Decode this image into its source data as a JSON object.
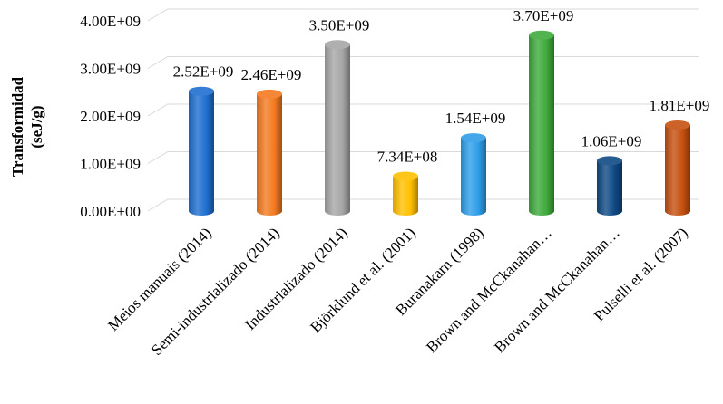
{
  "chart_data": {
    "type": "bar",
    "ylabel_line1": "Transformidad",
    "ylabel_line2": "(seJ/g)",
    "ylim": [
      0,
      4000000000
    ],
    "yticks": [
      {
        "value": 0,
        "label": "0.00E+00"
      },
      {
        "value": 1000000000,
        "label": "1.00E+09"
      },
      {
        "value": 2000000000,
        "label": "2.00E+09"
      },
      {
        "value": 3000000000,
        "label": "3.00E+09"
      },
      {
        "value": 4000000000,
        "label": "4.00E+09"
      }
    ],
    "categories": [
      "Meios manuais (2014)",
      "Semi-industrializado (2014)",
      "Industrializado (2014)",
      "Björklund et al. (2001)",
      "Buranakarn (1998)",
      "Brown and McCkanahan…",
      "Brown and McCkanahan…",
      "Pulselli et al. (2007)"
    ],
    "values": [
      2520000000,
      2460000000,
      3500000000,
      734000000,
      1540000000,
      3700000000,
      1060000000,
      1810000000
    ],
    "data_labels": [
      "2.52E+09",
      "2.46E+09",
      "3.50E+09",
      "7.34E+08",
      "1.54E+09",
      "3.70E+09",
      "1.06E+09",
      "1.81E+09"
    ],
    "colors": [
      "#1f6fd0",
      "#f47a20",
      "#a6a6a6",
      "#ffc000",
      "#2e9de8",
      "#3faa3c",
      "#0f4a84",
      "#c55010"
    ],
    "grid": true,
    "legend": "none"
  }
}
